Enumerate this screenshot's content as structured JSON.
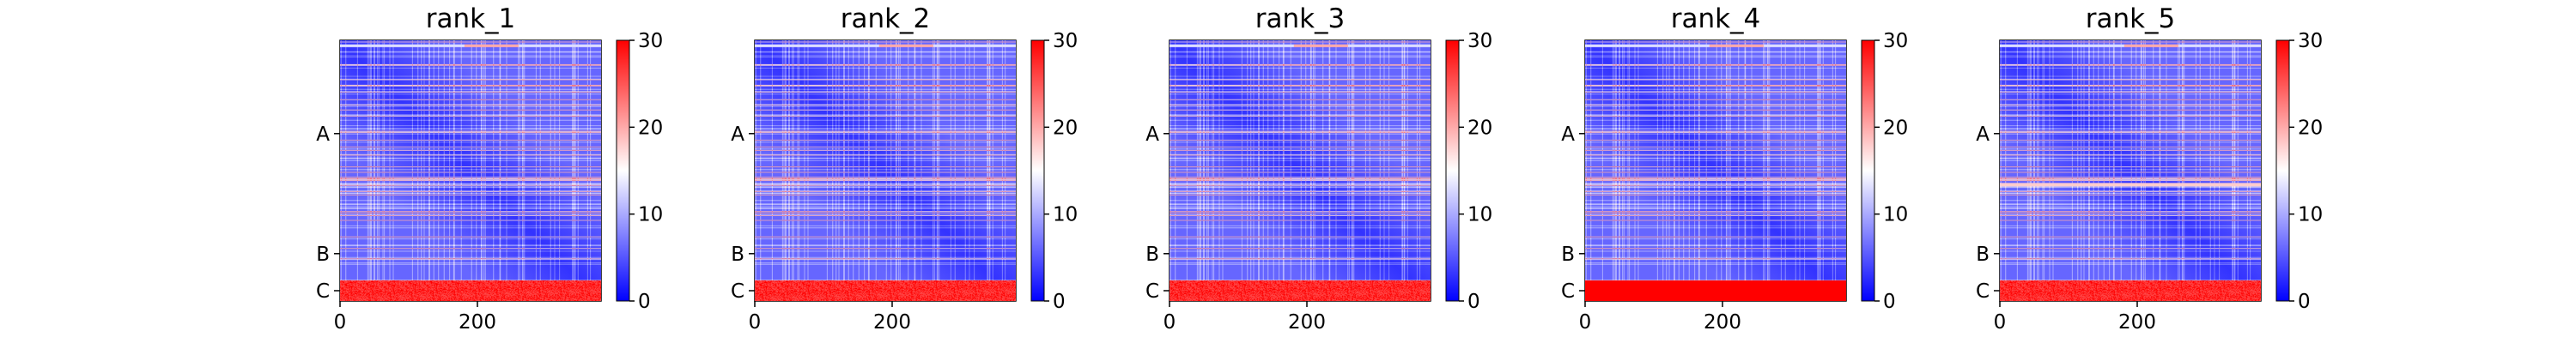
{
  "chart_data": [
    {
      "type": "heatmap",
      "title": "rank_1",
      "x_ticks": [
        "0",
        "200"
      ],
      "y_ticks": [
        "A",
        "B",
        "C"
      ],
      "colorbar_ticks": [
        "0",
        "10",
        "20",
        "30"
      ],
      "colorbar_range": [
        0,
        30
      ],
      "colormap": "bwr",
      "colors": {
        "low": "#0000ff",
        "mid": "#ffffff",
        "high": "#ff0000"
      },
      "x_range": [
        0,
        380
      ],
      "x_tick_values": [
        0,
        200
      ],
      "chain_boundaries": [
        272,
        350
      ],
      "chain_row_centers": [
        136,
        311,
        365
      ]
    },
    {
      "type": "heatmap",
      "title": "rank_2",
      "x_ticks": [
        "0",
        "200"
      ],
      "y_ticks": [
        "A",
        "B",
        "C"
      ],
      "colorbar_ticks": [
        "0",
        "10",
        "20",
        "30"
      ],
      "colorbar_range": [
        0,
        30
      ],
      "colormap": "bwr",
      "colors": {
        "low": "#0000ff",
        "mid": "#ffffff",
        "high": "#ff0000"
      },
      "x_range": [
        0,
        380
      ],
      "x_tick_values": [
        0,
        200
      ],
      "chain_boundaries": [
        272,
        350
      ],
      "chain_row_centers": [
        136,
        311,
        365
      ]
    },
    {
      "type": "heatmap",
      "title": "rank_3",
      "x_ticks": [
        "0",
        "200"
      ],
      "y_ticks": [
        "A",
        "B",
        "C"
      ],
      "colorbar_ticks": [
        "0",
        "10",
        "20",
        "30"
      ],
      "colorbar_range": [
        0,
        30
      ],
      "colormap": "bwr",
      "colors": {
        "low": "#0000ff",
        "mid": "#ffffff",
        "high": "#ff0000"
      },
      "x_range": [
        0,
        380
      ],
      "x_tick_values": [
        0,
        200
      ],
      "chain_boundaries": [
        272,
        350
      ],
      "chain_row_centers": [
        136,
        311,
        365
      ]
    },
    {
      "type": "heatmap",
      "title": "rank_4",
      "x_ticks": [
        "0",
        "200"
      ],
      "y_ticks": [
        "A",
        "B",
        "C"
      ],
      "colorbar_ticks": [
        "0",
        "10",
        "20",
        "30"
      ],
      "colorbar_range": [
        0,
        30
      ],
      "colormap": "bwr",
      "colors": {
        "low": "#0000ff",
        "mid": "#ffffff",
        "high": "#ff0000"
      },
      "x_range": [
        0,
        380
      ],
      "x_tick_values": [
        0,
        200
      ],
      "chain_boundaries": [
        272,
        350
      ],
      "chain_row_centers": [
        136,
        311,
        365
      ]
    },
    {
      "type": "heatmap",
      "title": "rank_5",
      "x_ticks": [
        "0",
        "200"
      ],
      "y_ticks": [
        "A",
        "B",
        "C"
      ],
      "colorbar_ticks": [
        "0",
        "10",
        "20",
        "30"
      ],
      "colorbar_range": [
        0,
        30
      ],
      "colormap": "bwr",
      "colors": {
        "low": "#0000ff",
        "mid": "#ffffff",
        "high": "#ff0000"
      },
      "x_range": [
        0,
        380
      ],
      "x_tick_values": [
        0,
        200
      ],
      "chain_boundaries": [
        272,
        350
      ],
      "chain_row_centers": [
        136,
        311,
        365
      ]
    }
  ]
}
